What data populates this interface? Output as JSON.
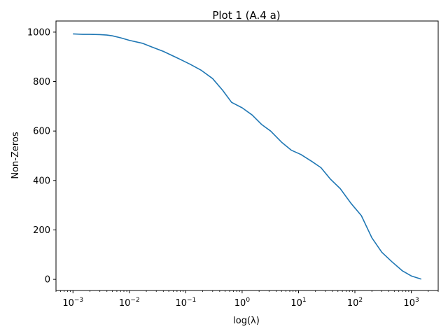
{
  "chart_data": {
    "type": "line",
    "title": "Plot 1 (A.4 a)",
    "xlabel": "log(λ)",
    "ylabel": "Non-Zeros",
    "xscale": "log",
    "xlim": [
      0.0005,
      3000
    ],
    "ylim": [
      -45,
      1045
    ],
    "x_ticks": [
      {
        "value": 0.001,
        "base": "10",
        "exp": "−3"
      },
      {
        "value": 0.01,
        "base": "10",
        "exp": "−2"
      },
      {
        "value": 0.1,
        "base": "10",
        "exp": "−1"
      },
      {
        "value": 1,
        "base": "10",
        "exp": "0"
      },
      {
        "value": 10,
        "base": "10",
        "exp": "1"
      },
      {
        "value": 100,
        "base": "10",
        "exp": "2"
      },
      {
        "value": 1000,
        "base": "10",
        "exp": "3"
      }
    ],
    "y_ticks": [
      0,
      200,
      400,
      600,
      800,
      1000
    ],
    "grid": false,
    "series": [
      {
        "name": "Non-Zeros",
        "color": "#1f77b4",
        "x": [
          0.001,
          0.0015,
          0.002,
          0.003,
          0.004,
          0.005,
          0.007,
          0.01,
          0.017,
          0.025,
          0.04,
          0.07,
          0.12,
          0.19,
          0.3,
          0.45,
          0.65,
          1.0,
          1.5,
          2.2,
          3.2,
          5.0,
          7.5,
          11,
          17,
          25,
          37,
          55,
          85,
          130,
          200,
          300,
          450,
          700,
          1000,
          1500
        ],
        "y": [
          993,
          991,
          991,
          990,
          988,
          985,
          977,
          967,
          955,
          940,
          922,
          896,
          870,
          845,
          812,
          765,
          716,
          694,
          665,
          627,
          600,
          555,
          522,
          505,
          478,
          452,
          405,
          367,
          308,
          258,
          168,
          110,
          72,
          34,
          14,
          1
        ]
      }
    ]
  }
}
